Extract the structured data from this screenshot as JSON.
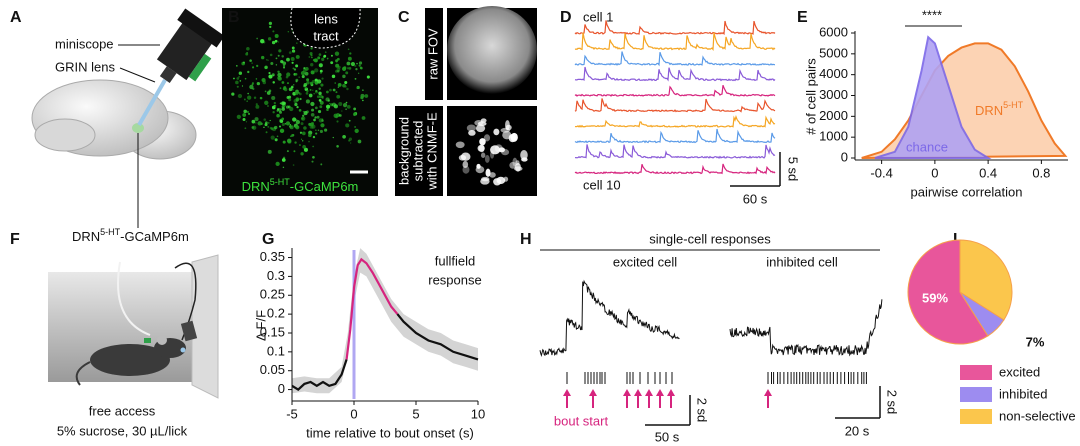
{
  "panel_labels": [
    "A",
    "B",
    "C",
    "D",
    "E",
    "F",
    "G",
    "H",
    "I"
  ],
  "A": {
    "scope": "miniscope",
    "lens": "GRIN lens",
    "target": {
      "base": "DRN",
      "sup": "5-HT",
      "rest": "-GCaMP6m"
    }
  },
  "B": {
    "tract": [
      "lens",
      "tract"
    ],
    "caption": {
      "base": "DRN",
      "sup": "5-HT",
      "rest": "-GCaMP6m"
    }
  },
  "C": {
    "top": "raw FOV",
    "bottom": [
      "background",
      "subtracted",
      "with CNMF-E"
    ]
  },
  "D": {
    "top_label": "cell 1",
    "bottom_label": "cell 10",
    "trace_colors": [
      "#e8542c",
      "#f5a623",
      "#5b9be8",
      "#8a5bd8",
      "#d6247e",
      "#e8542c",
      "#f5a623",
      "#5b9be8",
      "#8a5bd8",
      "#d6247e"
    ],
    "scale_y": "5 sd",
    "scale_x": "60 s"
  },
  "F": {
    "lines": [
      "free access",
      "5% sucrose, 30 µL/lick"
    ]
  },
  "H": {
    "title": "single-cell responses",
    "excited": "excited cell",
    "inhibited": "inhibited cell",
    "event": "bout start",
    "scale_y": "2 sd",
    "scale_x_left": "50 s",
    "scale_x_right": "20 s",
    "arrow_color": "#d6247e"
  },
  "chart_data": [
    {
      "type": "area",
      "xlabel": "pairwise correlation",
      "ylabel": "# of cell pairs",
      "annotation": "****",
      "xlim": [
        -0.6,
        1.0
      ],
      "ylim": [
        0,
        6000
      ],
      "xticks": [
        -0.4,
        0,
        0.4,
        0.8
      ],
      "yticks": [
        0,
        1000,
        2000,
        3000,
        4000,
        5000,
        6000
      ],
      "series": [
        {
          "name": "DRN",
          "name_sup": "5-HT",
          "color": "#f07a28",
          "fill": "#fcd3b4",
          "x": [
            -0.55,
            -0.4,
            -0.3,
            -0.2,
            -0.1,
            0,
            0.1,
            0.2,
            0.3,
            0.4,
            0.5,
            0.6,
            0.7,
            0.8,
            0.9,
            0.98
          ],
          "values": [
            0,
            300,
            900,
            1800,
            3000,
            4200,
            4900,
            5300,
            5500,
            5500,
            5200,
            4400,
            3200,
            1800,
            700,
            100
          ]
        },
        {
          "name": "chance",
          "color": "#7c68e8",
          "fill": "#b0a3f3",
          "x": [
            -0.45,
            -0.3,
            -0.2,
            -0.1,
            -0.05,
            0,
            0.1,
            0.2,
            0.3,
            0.4
          ],
          "values": [
            0,
            300,
            1500,
            4200,
            5800,
            5500,
            3500,
            1500,
            400,
            0
          ]
        }
      ]
    },
    {
      "type": "line",
      "xlabel": "time relative to bout onset (s)",
      "ylabel": "Δ F/F",
      "annotation": [
        "fullfield",
        "response"
      ],
      "xlim": [
        -5,
        10
      ],
      "ylim": [
        -0.025,
        0.37
      ],
      "xticks": [
        -5,
        0,
        5,
        10
      ],
      "yticks": [
        0,
        0.05,
        0.1,
        0.15,
        0.2,
        0.25,
        0.3,
        0.35
      ],
      "onset": 0,
      "onset_color": "#9d92f0",
      "band": {
        "color": "#d4d4d4",
        "x": [
          -5,
          -4,
          -3,
          -2,
          -1,
          -0.5,
          0,
          0.5,
          1,
          2,
          3,
          4,
          5,
          6,
          7,
          8,
          9,
          10
        ],
        "lower": [
          -0.01,
          -0.005,
          -0.01,
          -0.01,
          0.02,
          0.09,
          0.23,
          0.31,
          0.3,
          0.24,
          0.18,
          0.14,
          0.12,
          0.1,
          0.09,
          0.07,
          0.06,
          0.05
        ],
        "upper": [
          0.03,
          0.035,
          0.03,
          0.03,
          0.06,
          0.15,
          0.3,
          0.375,
          0.36,
          0.3,
          0.24,
          0.2,
          0.18,
          0.16,
          0.15,
          0.13,
          0.12,
          0.11
        ]
      },
      "series": [
        {
          "color": "#111111",
          "x": [
            -5,
            -4.5,
            -4,
            -3.5,
            -3,
            -2.5,
            -2,
            -1.5,
            -1,
            -0.6
          ],
          "values": [
            0.01,
            0.0,
            0.015,
            0.02,
            0.01,
            0.02,
            0.01,
            0.015,
            0.04,
            0.08
          ]
        },
        {
          "color": "#d6247e",
          "x": [
            -0.6,
            -0.3,
            0,
            0.3,
            0.6,
            1,
            1.5,
            2,
            2.5,
            3,
            3.5
          ],
          "values": [
            0.08,
            0.16,
            0.27,
            0.33,
            0.345,
            0.335,
            0.31,
            0.28,
            0.25,
            0.22,
            0.2
          ]
        },
        {
          "color": "#111111",
          "x": [
            3.5,
            4,
            5,
            6,
            7,
            8,
            9,
            10
          ],
          "values": [
            0.2,
            0.18,
            0.15,
            0.13,
            0.12,
            0.1,
            0.09,
            0.08
          ]
        }
      ]
    },
    {
      "type": "pie",
      "categories": [
        "excited",
        "inhibited",
        "non-selective"
      ],
      "values": [
        59,
        7,
        34
      ],
      "value_labels": [
        "59%",
        "7%",
        null
      ],
      "colors": [
        "#e8569b",
        "#9d8cf0",
        "#fbc64c"
      ]
    }
  ]
}
